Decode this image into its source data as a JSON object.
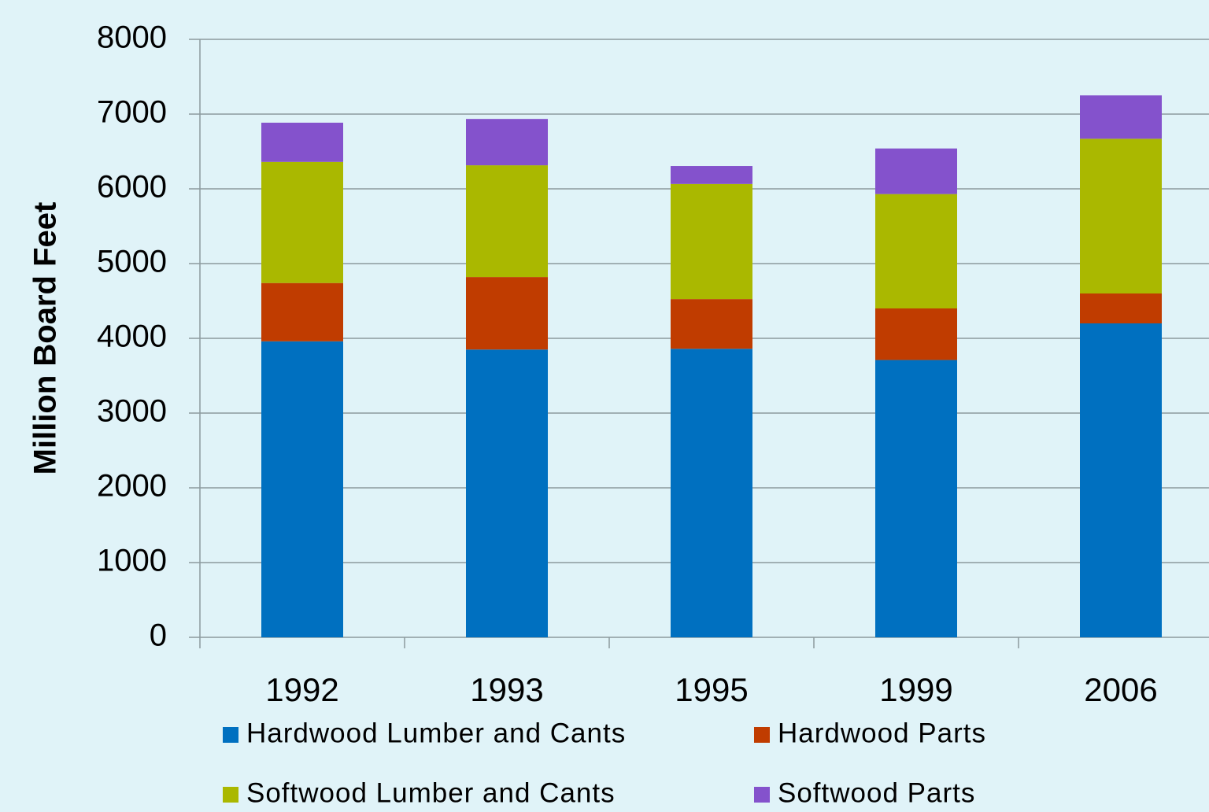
{
  "chart_data": {
    "type": "stacked_bar",
    "y_label": "Million Board Feet",
    "categories": [
      "1992",
      "1993",
      "1995",
      "1999",
      "2006"
    ],
    "series": [
      {
        "name": "Hardwood Lumber and Cants",
        "color": "#0070c0",
        "values": [
          3960,
          3850,
          3860,
          3710,
          4200
        ]
      },
      {
        "name": "Hardwood Parts",
        "color": "#c03c00",
        "values": [
          780,
          970,
          665,
          690,
          400
        ]
      },
      {
        "name": "Softwood Lumber and Cants",
        "color": "#aab800",
        "values": [
          1620,
          1495,
          1540,
          1530,
          2070
        ]
      },
      {
        "name": "Softwood Parts",
        "color": "#8452cc",
        "values": [
          525,
          620,
          240,
          610,
          580
        ]
      }
    ],
    "ylim": [
      0,
      8000
    ],
    "yticks": [
      0,
      1000,
      2000,
      3000,
      4000,
      5000,
      6000,
      7000,
      8000
    ],
    "grid": true,
    "legend": "bottom"
  }
}
